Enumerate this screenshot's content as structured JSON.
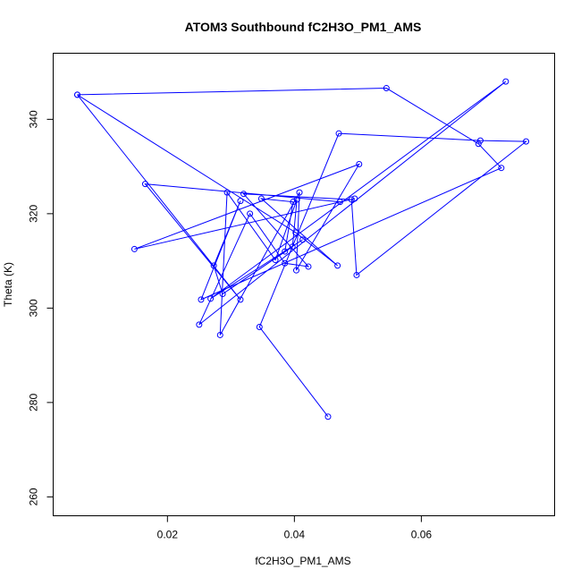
{
  "chart_data": {
    "type": "line",
    "title": "ATOM3 Southbound fC2H3O_PM1_AMS",
    "xlabel": "fC2H3O_PM1_AMS",
    "ylabel": "Theta (K)",
    "xlim": [
      0.002,
      0.081
    ],
    "ylim": [
      256,
      354
    ],
    "xticks": [
      0.02,
      0.04,
      0.06
    ],
    "xtick_labels": [
      "0.02",
      "0.04",
      "0.06"
    ],
    "yticks": [
      260,
      280,
      300,
      320,
      340
    ],
    "ytick_labels": [
      "260",
      "280",
      "300",
      "320",
      "340"
    ],
    "grid": false,
    "legend": "none",
    "series": [
      {
        "color": "#0000ff",
        "marker": "open-circle",
        "points": [
          [
            0.0453,
            277.0
          ],
          [
            0.0345,
            296.0
          ],
          [
            0.047,
            337.0
          ],
          [
            0.0693,
            335.5
          ],
          [
            0.0765,
            335.3
          ],
          [
            0.0498,
            307.0
          ],
          [
            0.049,
            323.0
          ],
          [
            0.032,
            324.2
          ],
          [
            0.0422,
            308.8
          ],
          [
            0.0385,
            309.5
          ],
          [
            0.033,
            320.0
          ],
          [
            0.025,
            296.5
          ],
          [
            0.0733,
            348.0
          ],
          [
            0.0268,
            302.0
          ],
          [
            0.0413,
            314.5
          ],
          [
            0.0385,
            312.0
          ],
          [
            0.0398,
            322.5
          ],
          [
            0.0348,
            323.2
          ],
          [
            0.0468,
            309.0
          ],
          [
            0.0402,
            316.0
          ],
          [
            0.0058,
            345.2
          ],
          [
            0.0315,
            301.8
          ],
          [
            0.0165,
            326.3
          ],
          [
            0.0472,
            322.5
          ],
          [
            0.0495,
            323.2
          ],
          [
            0.0148,
            312.5
          ],
          [
            0.0502,
            330.5
          ],
          [
            0.0403,
            308.0
          ],
          [
            0.0408,
            324.5
          ],
          [
            0.0283,
            294.3
          ],
          [
            0.0294,
            324.5
          ],
          [
            0.037,
            310.2
          ],
          [
            0.0404,
            323.0
          ],
          [
            0.0397,
            313.0
          ],
          [
            0.0287,
            303.0
          ],
          [
            0.0273,
            309.0
          ],
          [
            0.0315,
            322.7
          ],
          [
            0.0253,
            301.8
          ],
          [
            0.0726,
            329.7
          ],
          [
            0.069,
            334.8
          ],
          [
            0.0545,
            346.6
          ],
          [
            0.0058,
            345.2
          ]
        ]
      }
    ]
  }
}
